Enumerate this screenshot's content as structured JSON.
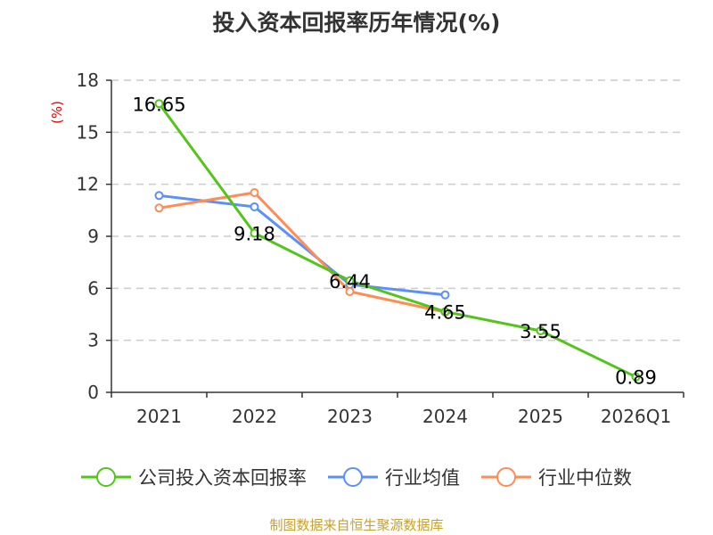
{
  "title": "投入资本回报率历年情况(%)",
  "source": "制图数据来自恒生聚源数据库",
  "chart_data": {
    "type": "line",
    "title": "投入资本回报率历年情况(%)",
    "ylabel": "(%)",
    "ylim": [
      0,
      18
    ],
    "yticks": [
      "0",
      "3",
      "6",
      "9",
      "12",
      "15",
      "18"
    ],
    "categories": [
      "2021",
      "2022",
      "2023",
      "2024",
      "2025",
      "2026Q1"
    ],
    "grid": true,
    "legend_position": "bottom",
    "series": [
      {
        "name": "公司投入资本回报率",
        "color": "#52c41a",
        "values": [
          16.65,
          9.18,
          6.44,
          4.65,
          3.55,
          0.89
        ],
        "labels": [
          "16.65",
          "9.18",
          "6.44",
          "4.65",
          "3.55",
          "0.89"
        ]
      },
      {
        "name": "行业均值",
        "color": "#5b8ff9",
        "values": [
          11.35,
          10.7,
          6.22,
          5.62,
          null,
          null
        ]
      },
      {
        "name": "行业中位数",
        "color": "#ff8c55",
        "values": [
          10.63,
          11.52,
          5.81,
          4.63,
          null,
          null
        ]
      }
    ]
  }
}
